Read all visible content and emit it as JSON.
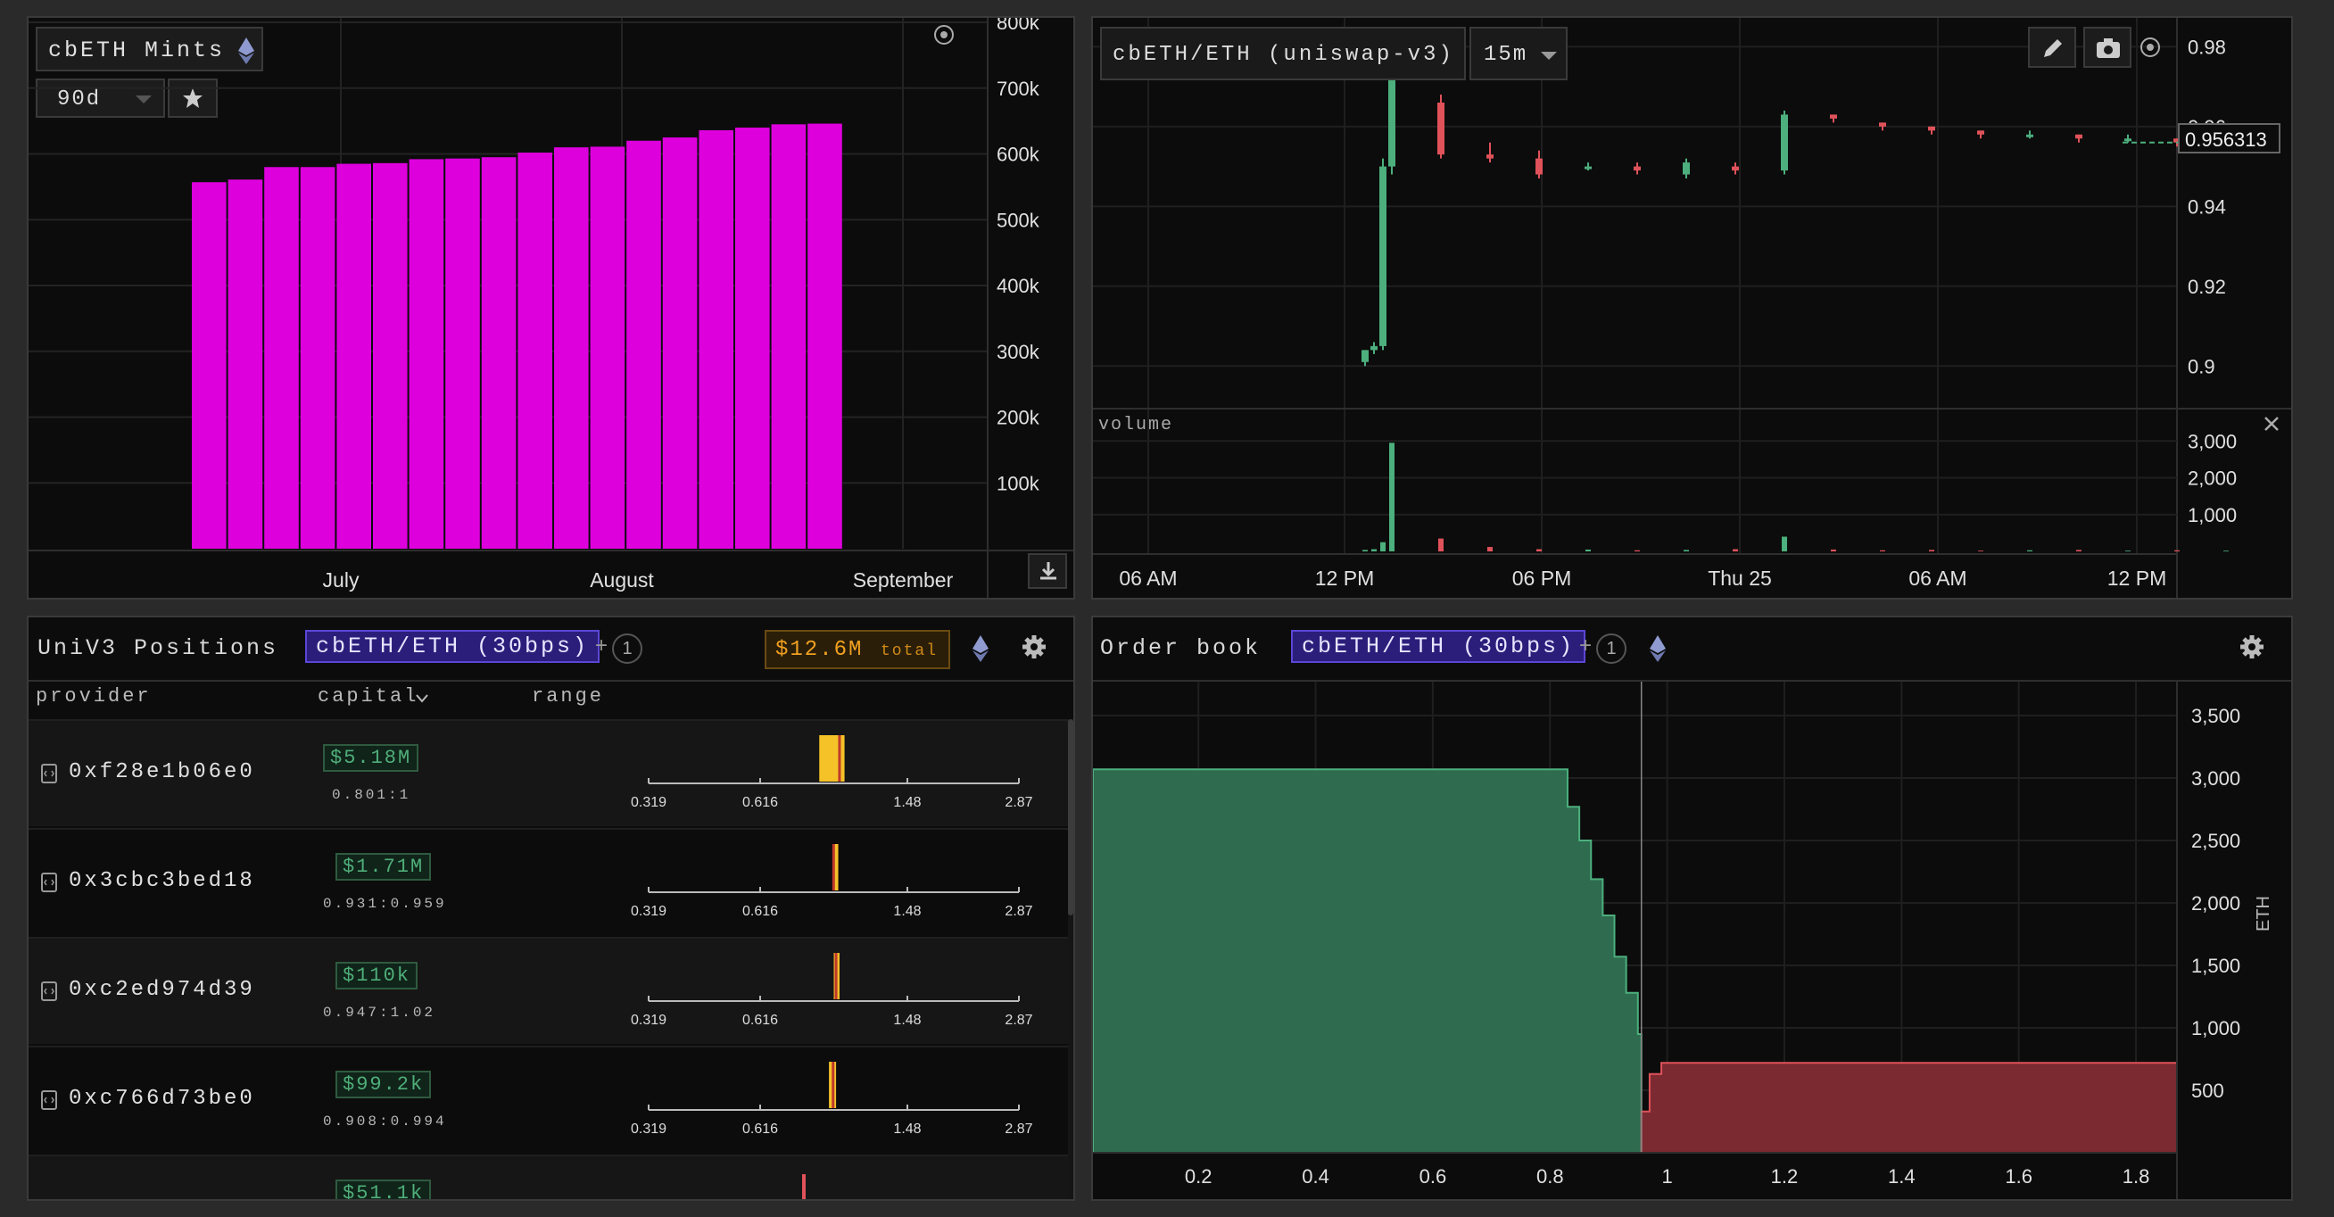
{
  "mints_panel": {
    "title": "cbETH Mints",
    "range_select": "90d",
    "chart_data": {
      "type": "bar",
      "title": "",
      "x_tick_labels": [
        "July",
        "August",
        "September"
      ],
      "y_tick_labels": [
        "100k",
        "200k",
        "300k",
        "400k",
        "500k",
        "600k",
        "700k",
        "800k"
      ],
      "ylim": [
        0,
        800000
      ],
      "bar_color": "#dd00dd",
      "values": [
        557000,
        561000,
        580000,
        580000,
        585000,
        586000,
        592000,
        593000,
        595000,
        602000,
        610000,
        611000,
        620000,
        625000,
        636000,
        640000,
        645000,
        646000
      ]
    }
  },
  "price_panel": {
    "pair_label": "cbETH/ETH (uniswap-v3)",
    "interval": "15m",
    "last_price": "0.956313",
    "y_tick_labels": [
      "0.9",
      "0.92",
      "0.94",
      "0.96",
      "0.98"
    ],
    "volume_label": "volume",
    "volume_tick_labels": [
      "1,000",
      "2,000",
      "3,000"
    ],
    "x_tick_labels": [
      "06 AM",
      "12 PM",
      "06 PM",
      "Thu 25",
      "06 AM",
      "12 PM"
    ],
    "up_color": "#4caf7d",
    "down_color": "#e0525a",
    "chart_data": {
      "type": "line",
      "price_ylim": [
        0.89,
        0.985
      ],
      "volume_ylim": [
        0,
        3200
      ],
      "candles": [
        {
          "o": 0.901,
          "c": 0.904,
          "h": 0.904,
          "l": 0.9
        },
        {
          "o": 0.904,
          "c": 0.905,
          "h": 0.906,
          "l": 0.903
        },
        {
          "o": 0.905,
          "c": 0.95,
          "h": 0.952,
          "l": 0.904
        },
        {
          "o": 0.95,
          "c": 0.98,
          "h": 0.985,
          "l": 0.948
        },
        {
          "o": 0.966,
          "c": 0.953,
          "h": 0.968,
          "l": 0.952
        },
        {
          "o": 0.953,
          "c": 0.952,
          "h": 0.956,
          "l": 0.951
        },
        {
          "o": 0.952,
          "c": 0.948,
          "h": 0.954,
          "l": 0.947
        },
        {
          "o": 0.95,
          "c": 0.95,
          "h": 0.951,
          "l": 0.949
        },
        {
          "o": 0.95,
          "c": 0.949,
          "h": 0.951,
          "l": 0.948
        },
        {
          "o": 0.948,
          "c": 0.951,
          "h": 0.952,
          "l": 0.947
        },
        {
          "o": 0.95,
          "c": 0.949,
          "h": 0.951,
          "l": 0.948
        },
        {
          "o": 0.949,
          "c": 0.963,
          "h": 0.964,
          "l": 0.948
        },
        {
          "o": 0.963,
          "c": 0.962,
          "h": 0.963,
          "l": 0.961
        },
        {
          "o": 0.961,
          "c": 0.96,
          "h": 0.961,
          "l": 0.959
        },
        {
          "o": 0.96,
          "c": 0.959,
          "h": 0.96,
          "l": 0.958
        },
        {
          "o": 0.959,
          "c": 0.958,
          "h": 0.959,
          "l": 0.957
        },
        {
          "o": 0.958,
          "c": 0.958,
          "h": 0.959,
          "l": 0.957
        },
        {
          "o": 0.958,
          "c": 0.957,
          "h": 0.958,
          "l": 0.956
        },
        {
          "o": 0.957,
          "c": 0.957,
          "h": 0.958,
          "l": 0.956
        },
        {
          "o": 0.957,
          "c": 0.956,
          "h": 0.957,
          "l": 0.955
        },
        {
          "o": 0.956,
          "c": 0.956,
          "h": 0.957,
          "l": 0.955
        }
      ],
      "volumes": [
        40,
        60,
        250,
        2950,
        350,
        120,
        60,
        50,
        30,
        40,
        60,
        400,
        50,
        30,
        40,
        20,
        30,
        40,
        20,
        30,
        20
      ]
    }
  },
  "positions_panel": {
    "title": "UniV3 Positions",
    "pair_chip": "cbETH/ETH (30bps)",
    "plus": "+",
    "count": "1",
    "total_value": "$12.6M",
    "total_label": "total",
    "col_provider": "provider",
    "col_capital": "capital",
    "col_range": "range",
    "axis_ticks": [
      "0.319",
      "0.616",
      "1.48",
      "2.87"
    ],
    "rows": [
      {
        "provider": "0xf28e1b06e0",
        "capital": "$5.18M",
        "ratio": "0.801:1"
      },
      {
        "provider": "0x3cbc3bed18",
        "capital": "$1.71M",
        "ratio": "0.931:0.959"
      },
      {
        "provider": "0xc2ed974d39",
        "capital": "$110k",
        "ratio": "0.947:1.02"
      },
      {
        "provider": "0xc766d73be0",
        "capital": "$99.2k",
        "ratio": "0.908:0.994"
      },
      {
        "provider": "",
        "capital": "$51.1k",
        "ratio": ""
      }
    ]
  },
  "orderbook_panel": {
    "title": "Order book",
    "pair_chip": "cbETH/ETH (30bps)",
    "plus": "+",
    "count": "1",
    "y_axis_label": "ETH",
    "chart_data": {
      "type": "area",
      "x_tick_labels": [
        "0.2",
        "0.4",
        "0.6",
        "0.8",
        "1",
        "1.2",
        "1.4",
        "1.6",
        "1.8"
      ],
      "y_tick_labels": [
        "500",
        "1,000",
        "1,500",
        "2,000",
        "2,500",
        "3,000",
        "3,500"
      ],
      "xlim": [
        0.02,
        1.87
      ],
      "ylim": [
        0,
        3700
      ],
      "mid_price": 0.956,
      "bids": [
        [
          0.02,
          3070
        ],
        [
          0.83,
          3070
        ],
        [
          0.83,
          2770
        ],
        [
          0.85,
          2770
        ],
        [
          0.85,
          2500
        ],
        [
          0.87,
          2500
        ],
        [
          0.87,
          2190
        ],
        [
          0.89,
          2190
        ],
        [
          0.89,
          1900
        ],
        [
          0.91,
          1900
        ],
        [
          0.91,
          1570
        ],
        [
          0.93,
          1570
        ],
        [
          0.93,
          1280
        ],
        [
          0.95,
          1280
        ],
        [
          0.95,
          950
        ],
        [
          0.956,
          950
        ],
        [
          0.956,
          0
        ]
      ],
      "asks": [
        [
          0.956,
          0
        ],
        [
          0.956,
          330
        ],
        [
          0.97,
          330
        ],
        [
          0.97,
          630
        ],
        [
          0.99,
          630
        ],
        [
          0.99,
          720
        ],
        [
          1.87,
          720
        ]
      ],
      "bid_color": "#2e6b4f",
      "ask_color": "#7a2a30"
    }
  }
}
